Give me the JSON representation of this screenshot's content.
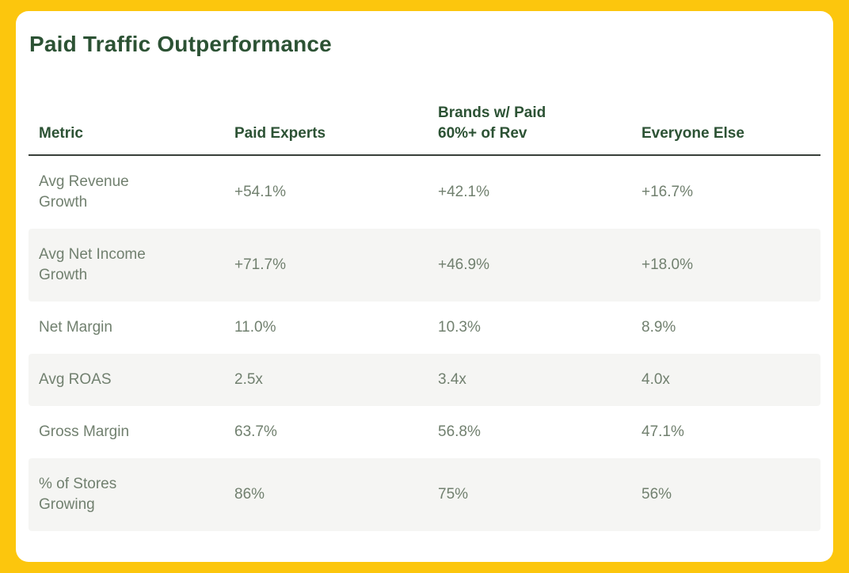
{
  "title": "Paid Traffic Outperformance",
  "colors": {
    "frame_yellow": "#FCC60D",
    "card_background": "#FFFFFF",
    "title_green": "#2C5234",
    "header_green": "#2C5234",
    "body_text": "#71806F",
    "alt_row_background": "#F5F5F3",
    "header_rule": "#383F39"
  },
  "chart_data": {
    "type": "table",
    "title": "Paid Traffic Outperformance",
    "columns": [
      "Metric",
      "Paid Experts",
      "Brands w/ Paid 60%+ of Rev",
      "Everyone Else"
    ],
    "rows": [
      [
        "Avg Revenue Growth",
        "+54.1%",
        "+42.1%",
        "+16.7%"
      ],
      [
        "Avg Net Income Growth",
        "+71.7%",
        "+46.9%",
        "+18.0%"
      ],
      [
        "Net Margin",
        "11.0%",
        "10.3%",
        "8.9%"
      ],
      [
        "Avg ROAS",
        "2.5x",
        "3.4x",
        "4.0x"
      ],
      [
        "Gross Margin",
        "63.7%",
        "56.8%",
        "47.1%"
      ],
      [
        "% of Stores Growing",
        "86%",
        "75%",
        "56%"
      ]
    ],
    "layout": {
      "grid": "off",
      "row_striping": "alternating white / light gray",
      "value_format": "percentages and ROAS multiples"
    }
  }
}
